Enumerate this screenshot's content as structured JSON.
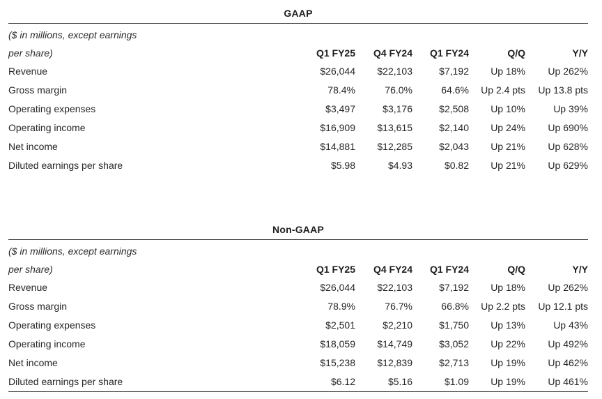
{
  "page": {
    "background": "#ffffff",
    "text_color": "#222222",
    "rule_color": "#3d3d3d"
  },
  "tables": [
    {
      "title": "GAAP",
      "note_line1": "($ in millions, except earnings",
      "note_line2": "per share)",
      "columns": [
        "Q1 FY25",
        "Q4 FY24",
        "Q1 FY24",
        "Q/Q",
        "Y/Y"
      ],
      "rows": [
        {
          "label": "Revenue",
          "values": [
            "$26,044",
            "$22,103",
            "$7,192",
            "Up 18%",
            "Up 262%"
          ]
        },
        {
          "label": "Gross margin",
          "values": [
            "78.4%",
            "76.0%",
            "64.6%",
            "Up 2.4 pts",
            "Up 13.8 pts"
          ]
        },
        {
          "label": "Operating expenses",
          "values": [
            "$3,497",
            "$3,176",
            "$2,508",
            "Up 10%",
            "Up 39%"
          ]
        },
        {
          "label": "Operating income",
          "values": [
            "$16,909",
            "$13,615",
            "$2,140",
            "Up 24%",
            "Up 690%"
          ]
        },
        {
          "label": "Net income",
          "values": [
            "$14,881",
            "$12,285",
            "$2,043",
            "Up 21%",
            "Up 628%"
          ]
        },
        {
          "label": "Diluted earnings per share",
          "values": [
            "$5.98",
            "$4.93",
            "$0.82",
            "Up 21%",
            "Up 629%"
          ]
        }
      ]
    },
    {
      "title": "Non-GAAP",
      "note_line1": "($ in millions, except earnings",
      "note_line2": "per share)",
      "columns": [
        "Q1 FY25",
        "Q4 FY24",
        "Q1 FY24",
        "Q/Q",
        "Y/Y"
      ],
      "rows": [
        {
          "label": "Revenue",
          "values": [
            "$26,044",
            "$22,103",
            "$7,192",
            "Up 18%",
            "Up 262%"
          ]
        },
        {
          "label": "Gross margin",
          "values": [
            "78.9%",
            "76.7%",
            "66.8%",
            "Up 2.2 pts",
            "Up 12.1 pts"
          ]
        },
        {
          "label": "Operating expenses",
          "values": [
            "$2,501",
            "$2,210",
            "$1,750",
            "Up 13%",
            "Up 43%"
          ]
        },
        {
          "label": "Operating income",
          "values": [
            "$18,059",
            "$14,749",
            "$3,052",
            "Up 22%",
            "Up 492%"
          ]
        },
        {
          "label": "Net income",
          "values": [
            "$15,238",
            "$12,839",
            "$2,713",
            "Up 19%",
            "Up 462%"
          ]
        },
        {
          "label": "Diluted earnings per share",
          "values": [
            "$6.12",
            "$5.16",
            "$1.09",
            "Up 19%",
            "Up 461%"
          ]
        }
      ]
    }
  ]
}
